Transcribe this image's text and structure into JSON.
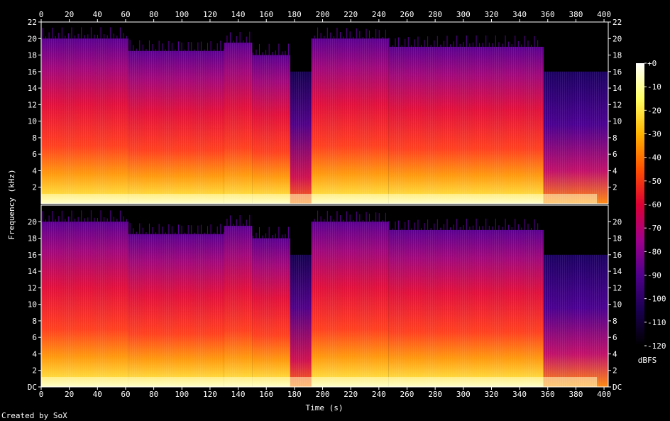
{
  "chart_data": {
    "type": "heatmap",
    "title": "",
    "xlabel": "Time (s)",
    "ylabel": "Frequency (kHz)",
    "xlim": [
      0,
      403
    ],
    "ylim": [
      0,
      22
    ],
    "x_ticks": [
      0,
      20,
      40,
      60,
      80,
      100,
      120,
      140,
      160,
      180,
      200,
      220,
      240,
      260,
      280,
      300,
      320,
      340,
      360,
      380,
      400
    ],
    "y_ticks_top": [
      "2",
      "4",
      "6",
      "8",
      "10",
      "12",
      "14",
      "16",
      "18",
      "20",
      "22"
    ],
    "y_ticks_bottom": [
      "DC",
      "2",
      "4",
      "6",
      "8",
      "10",
      "12",
      "14",
      "16",
      "18",
      "20"
    ],
    "channels": 2,
    "colorbar": {
      "label": "dBFS",
      "ticks": [
        "+0",
        "-10",
        "-20",
        "-30",
        "-40",
        "-50",
        "-60",
        "-70",
        "-80",
        "-90",
        "-100",
        "-110",
        "-120"
      ],
      "range": [
        -120,
        0
      ],
      "colormap": [
        "#000000",
        "#1a0050",
        "#50008c",
        "#a0008c",
        "#dc0032",
        "#ff5000",
        "#ffb400",
        "#ffff64",
        "#ffffff"
      ]
    },
    "segments": [
      {
        "start": 0,
        "end": 62,
        "cutoff_khz": 20
      },
      {
        "start": 62,
        "end": 130,
        "cutoff_khz": 18.5
      },
      {
        "start": 130,
        "end": 150,
        "cutoff_khz": 19.5
      },
      {
        "start": 150,
        "end": 177,
        "cutoff_khz": 18
      },
      {
        "start": 177,
        "end": 192,
        "cutoff_khz": 16
      },
      {
        "start": 192,
        "end": 247,
        "cutoff_khz": 20
      },
      {
        "start": 247,
        "end": 357,
        "cutoff_khz": 19
      },
      {
        "start": 357,
        "end": 403,
        "cutoff_khz": 16
      }
    ]
  },
  "footer": {
    "credit": "Created by SoX"
  }
}
